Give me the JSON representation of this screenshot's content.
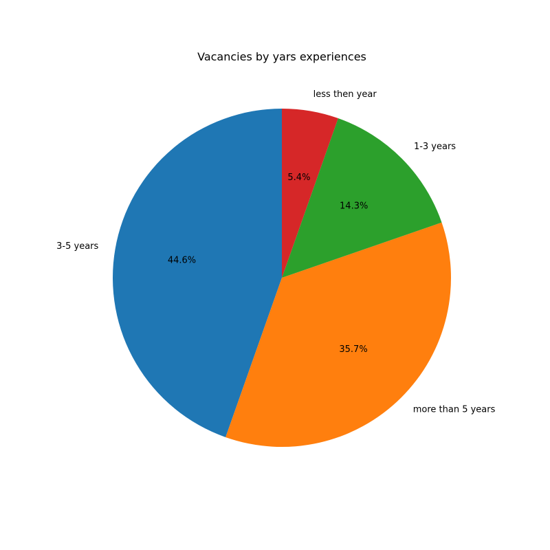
{
  "chart_data": {
    "type": "pie",
    "title": "Vacancies by yars experiences",
    "slices": [
      {
        "label": "less then year",
        "value": 5.4,
        "pct_label": "5.4%",
        "color": "#d62728"
      },
      {
        "label": "1-3 years",
        "value": 14.3,
        "pct_label": "14.3%",
        "color": "#2ca02c"
      },
      {
        "label": "more than 5 years",
        "value": 35.7,
        "pct_label": "35.7%",
        "color": "#ff7f0e"
      },
      {
        "label": "3-5 years",
        "value": 44.6,
        "pct_label": "44.6%",
        "color": "#1f77b4"
      }
    ],
    "start_angle_deg": 90,
    "direction": "clockwise"
  }
}
